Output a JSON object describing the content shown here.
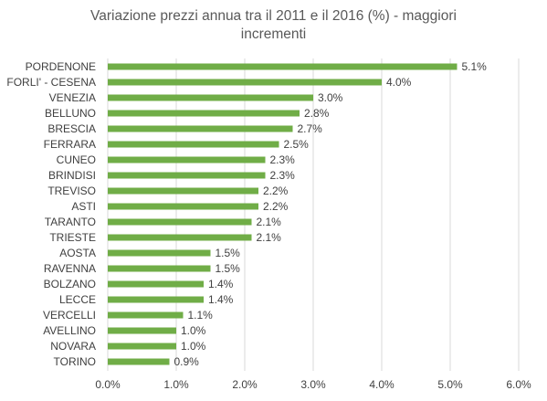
{
  "chart_data": {
    "type": "bar",
    "orientation": "horizontal",
    "title_lines": [
      "Variazione prezzi annua tra il 2011 e il 2016 (%) - maggiori",
      "incrementi"
    ],
    "categories": [
      "PORDENONE",
      "FORLI' - CESENA",
      "VENEZIA",
      "BELLUNO",
      "BRESCIA",
      "FERRARA",
      "CUNEO",
      "BRINDISI",
      "TREVISO",
      "ASTI",
      "TARANTO",
      "TRIESTE",
      "AOSTA",
      "RAVENNA",
      "BOLZANO",
      "LECCE",
      "VERCELLI",
      "AVELLINO",
      "NOVARA",
      "TORINO"
    ],
    "values": [
      5.1,
      4.0,
      3.0,
      2.8,
      2.7,
      2.5,
      2.3,
      2.3,
      2.2,
      2.2,
      2.1,
      2.1,
      1.5,
      1.5,
      1.4,
      1.4,
      1.1,
      1.0,
      1.0,
      0.9
    ],
    "value_labels": [
      "5.1%",
      "4.0%",
      "3.0%",
      "2.8%",
      "2.7%",
      "2.5%",
      "2.3%",
      "2.3%",
      "2.2%",
      "2.2%",
      "2.1%",
      "2.1%",
      "1.5%",
      "1.5%",
      "1.4%",
      "1.4%",
      "1.1%",
      "1.0%",
      "1.0%",
      "0.9%"
    ],
    "xlim": [
      0,
      6
    ],
    "x_ticks": [
      "0.0%",
      "1.0%",
      "2.0%",
      "3.0%",
      "4.0%",
      "5.0%",
      "6.0%"
    ],
    "gridlines": "vertical",
    "bar_color": "#70ad47",
    "grid_color": "#d9d9d9"
  }
}
